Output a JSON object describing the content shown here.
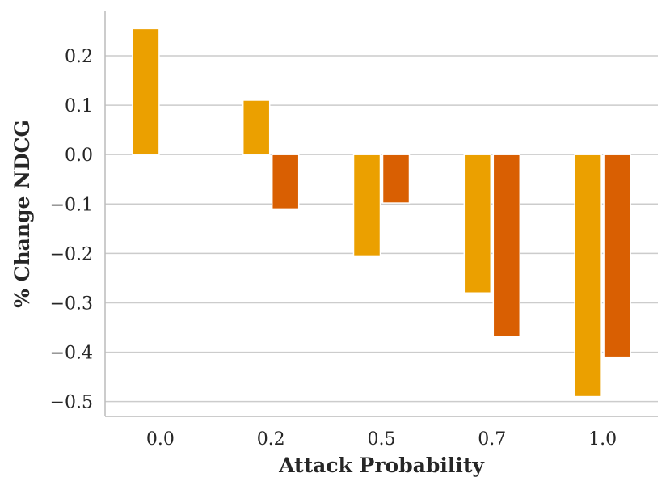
{
  "chart_data": {
    "type": "bar",
    "title": "",
    "xlabel": "Attack Probability",
    "ylabel": "% Change NDCG",
    "categories": [
      "0.0",
      "0.2",
      "0.5",
      "0.7",
      "1.0"
    ],
    "series": [
      {
        "color": "#EBA000",
        "values": [
          0.255,
          0.11,
          -0.205,
          -0.28,
          -0.49
        ]
      },
      {
        "color": "#D95F02",
        "values": [
          0.0,
          -0.11,
          -0.098,
          -0.368,
          -0.41
        ]
      }
    ],
    "yticks": [
      0.2,
      0.1,
      0.0,
      -0.1,
      -0.2,
      -0.3,
      -0.4,
      -0.5
    ],
    "ytick_labels": [
      "0.2",
      "0.1",
      "0.0",
      "−0.1",
      "−0.2",
      "−0.3",
      "−0.4",
      "−0.5"
    ],
    "ylim": [
      -0.53,
      0.29
    ],
    "grid": "horizontal",
    "legend": "none"
  }
}
